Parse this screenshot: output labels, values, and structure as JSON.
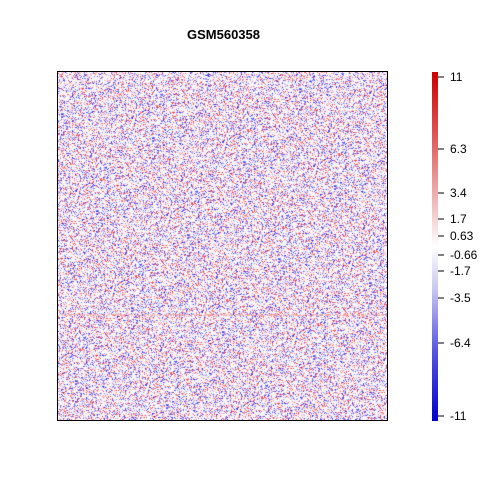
{
  "chart_data": {
    "type": "heatmap",
    "title": "GSM560358",
    "xlabel": "",
    "ylabel": "",
    "colorbar": {
      "min": -11,
      "max": 11,
      "colors": {
        "low": "#0000cc",
        "mid": "#ffffff",
        "high": "#cc0000"
      },
      "ticks": [
        {
          "value": 11,
          "label": "11"
        },
        {
          "value": 6.3,
          "label": "6.3"
        },
        {
          "value": 3.4,
          "label": "3.4"
        },
        {
          "value": 1.7,
          "label": "1.7"
        },
        {
          "value": 0.63,
          "label": "0.63"
        },
        {
          "value": -0.66,
          "label": "-0.66"
        },
        {
          "value": -1.7,
          "label": "-1.7"
        },
        {
          "value": -3.5,
          "label": "-3.5"
        },
        {
          "value": -6.4,
          "label": "-6.4"
        },
        {
          "value": -11,
          "label": "-11"
        }
      ]
    },
    "background": "#f5f2f6"
  }
}
